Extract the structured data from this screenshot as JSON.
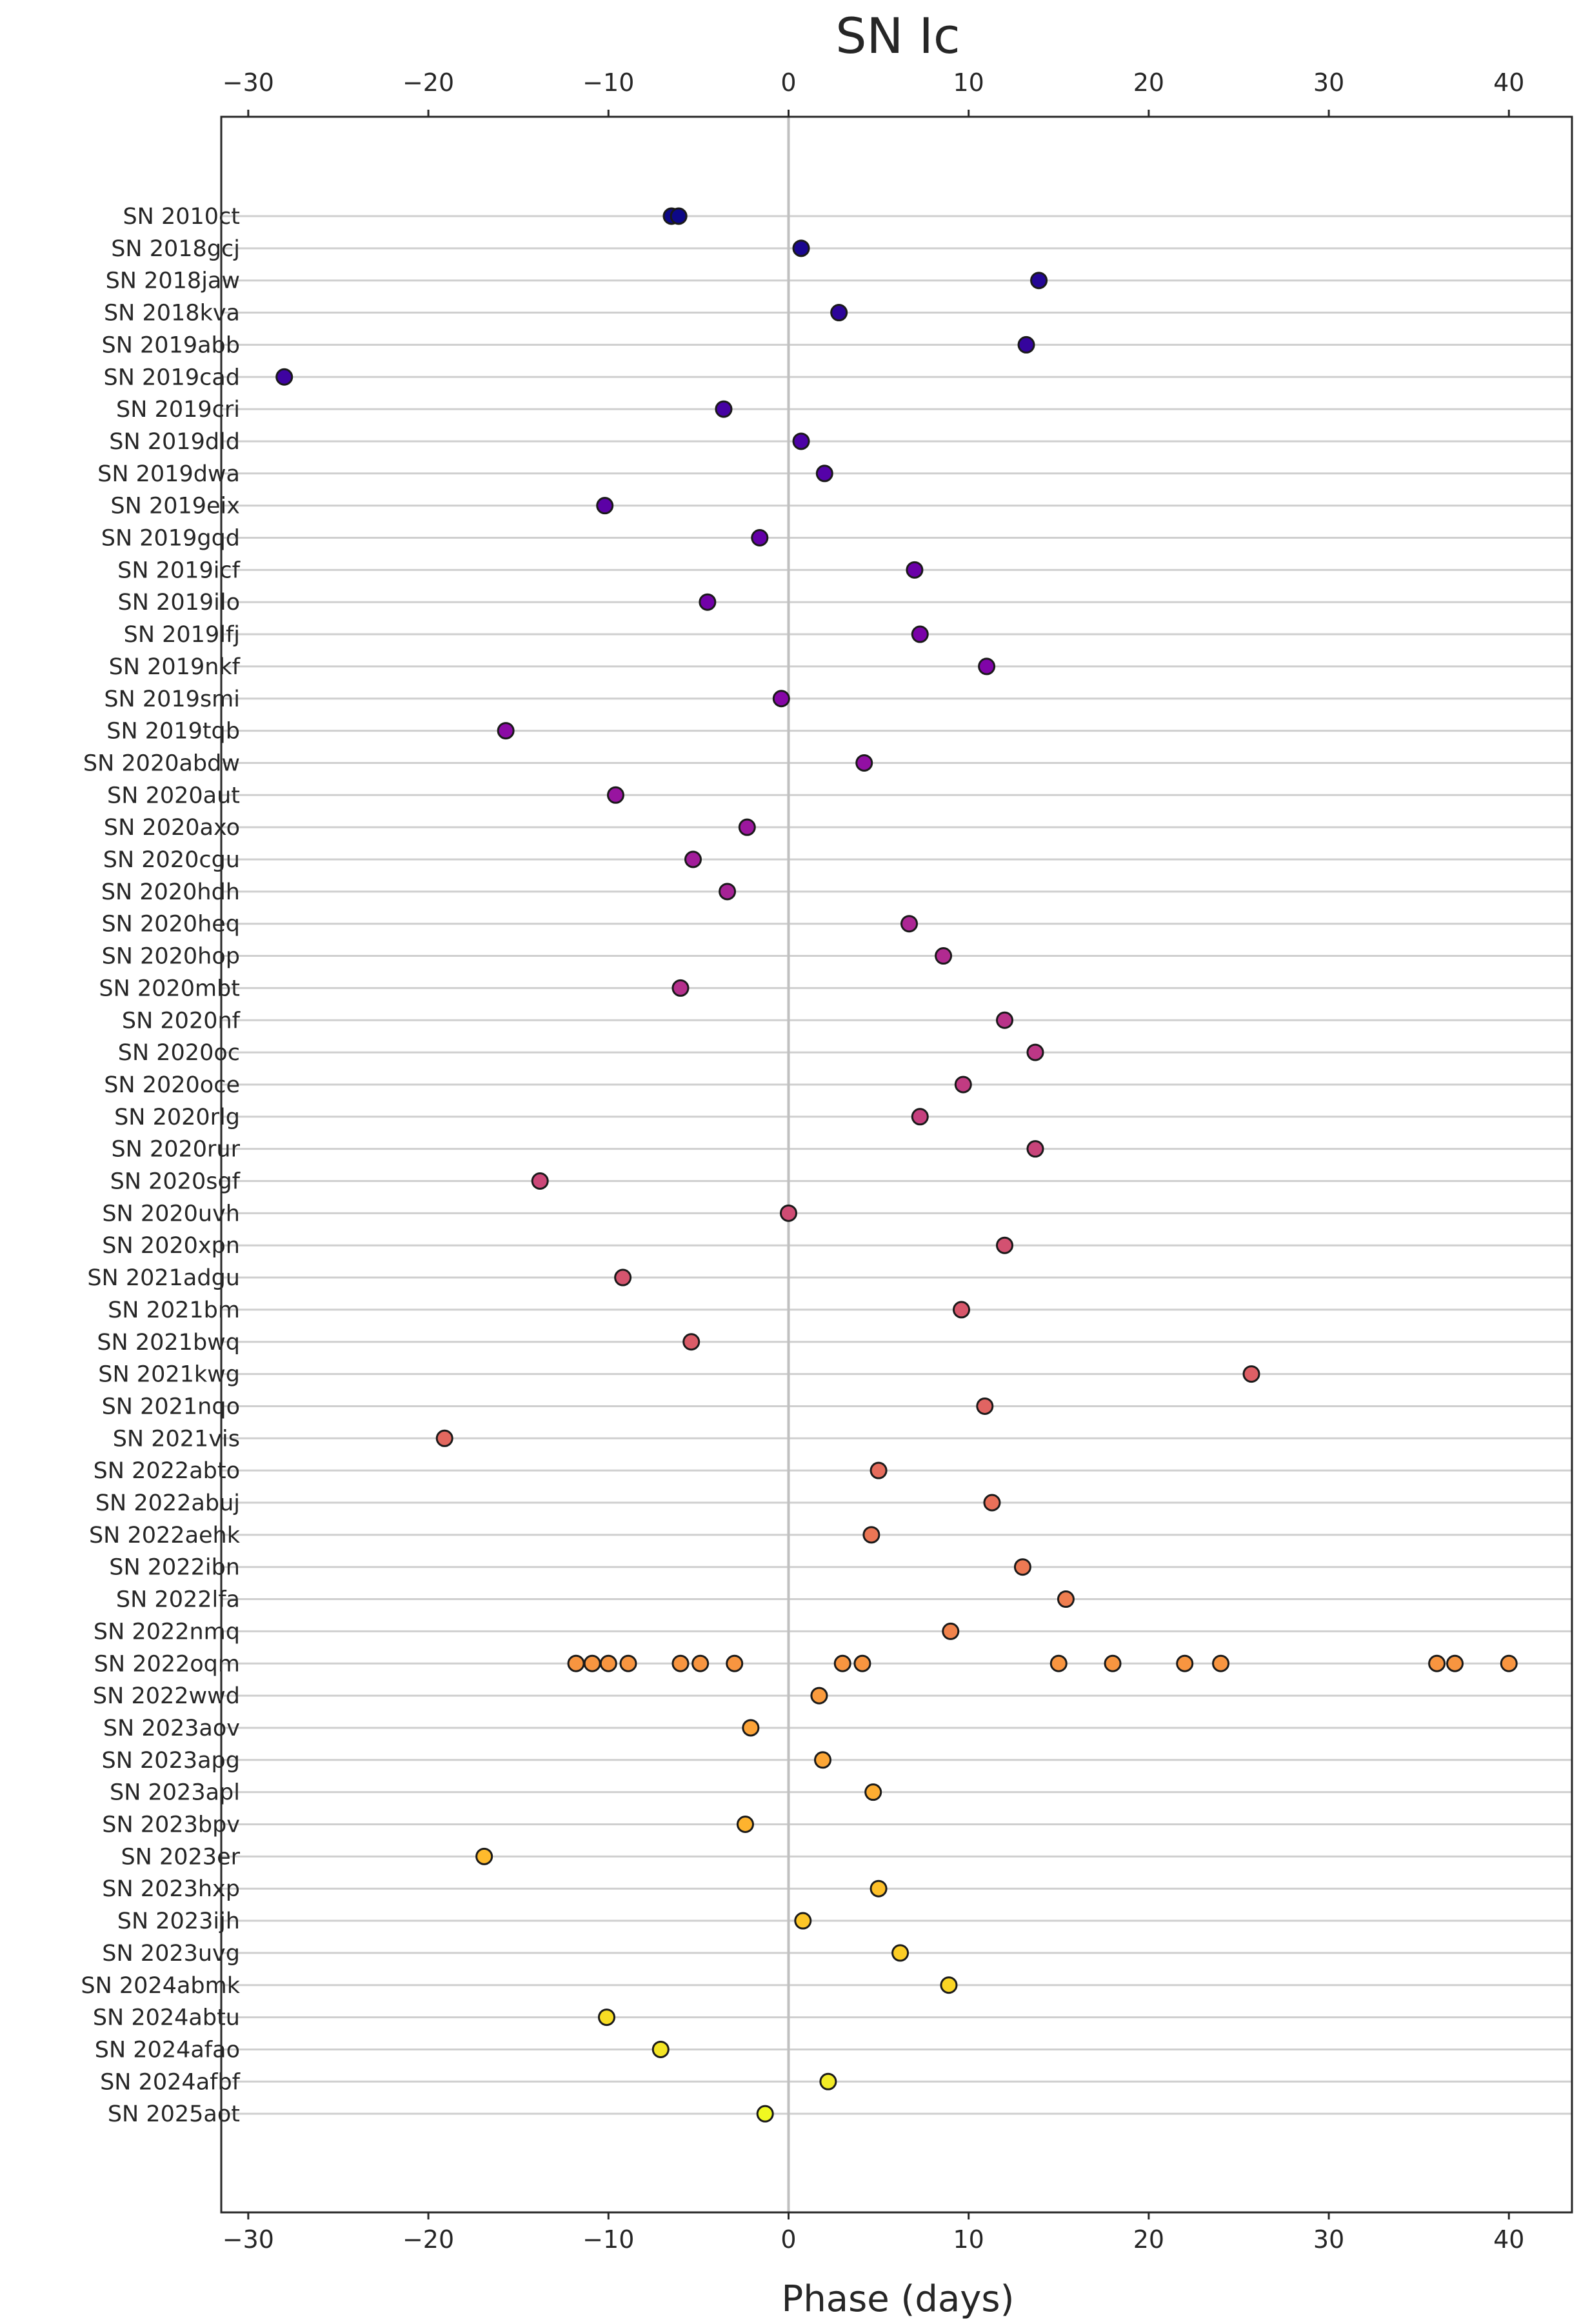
{
  "chart_data": {
    "type": "scatter",
    "title": "SN Ic",
    "xlabel": "Phase (days)",
    "ylabel": "",
    "xlim": [
      -31.5,
      43.5
    ],
    "xticks": [
      -30,
      -20,
      -10,
      0,
      10,
      20,
      30,
      40
    ],
    "xtick_labels": [
      "−30",
      "−20",
      "−10",
      "0",
      "10",
      "20",
      "30",
      "40"
    ],
    "grid": "horizontal",
    "reference_line_x": 0,
    "colormap": "plasma",
    "series": [
      {
        "name": "SN 2010ct",
        "phases": [
          -6.5,
          -6.1
        ],
        "color": "#0d0887"
      },
      {
        "name": "SN 2018gcj",
        "phases": [
          0.7
        ],
        "color": "#1a068f"
      },
      {
        "name": "SN 2018jaw",
        "phases": [
          13.9
        ],
        "color": "#240695"
      },
      {
        "name": "SN 2018kva",
        "phases": [
          2.8
        ],
        "color": "#2d0499"
      },
      {
        "name": "SN 2019abb",
        "phases": [
          13.2
        ],
        "color": "#35049d"
      },
      {
        "name": "SN 2019cad",
        "phases": [
          -28.0
        ],
        "color": "#3e03a1"
      },
      {
        "name": "SN 2019cri",
        "phases": [
          -3.6
        ],
        "color": "#4602a3"
      },
      {
        "name": "SN 2019dld",
        "phases": [
          0.7
        ],
        "color": "#4d02a6"
      },
      {
        "name": "SN 2019dwa",
        "phases": [
          2.0
        ],
        "color": "#5502a8"
      },
      {
        "name": "SN 2019eix",
        "phases": [
          -10.2
        ],
        "color": "#5c01a6"
      },
      {
        "name": "SN 2019gqd",
        "phases": [
          -1.6
        ],
        "color": "#6400a7"
      },
      {
        "name": "SN 2019icf",
        "phases": [
          7.0
        ],
        "color": "#6a00a8"
      },
      {
        "name": "SN 2019ilo",
        "phases": [
          -4.5
        ],
        "color": "#7201a8"
      },
      {
        "name": "SN 2019lfj",
        "phases": [
          7.3
        ],
        "color": "#7a02a8"
      },
      {
        "name": "SN 2019nkf",
        "phases": [
          11.0
        ],
        "color": "#8004a8"
      },
      {
        "name": "SN 2019smi",
        "phases": [
          -0.4
        ],
        "color": "#8606a6"
      },
      {
        "name": "SN 2019tqb",
        "phases": [
          -15.7
        ],
        "color": "#8b0aa5"
      },
      {
        "name": "SN 2020abdw",
        "phases": [
          4.2
        ],
        "color": "#920fa3"
      },
      {
        "name": "SN 2020aut",
        "phases": [
          -9.6
        ],
        "color": "#9814a0"
      },
      {
        "name": "SN 2020axo",
        "phases": [
          -2.3
        ],
        "color": "#9c179e"
      },
      {
        "name": "SN 2020cgu",
        "phases": [
          -5.3
        ],
        "color": "#a21d9a"
      },
      {
        "name": "SN 2020hdh",
        "phases": [
          -3.4
        ],
        "color": "#a62396"
      },
      {
        "name": "SN 2020heq",
        "phases": [
          6.7
        ],
        "color": "#ac2694"
      },
      {
        "name": "SN 2020hop",
        "phases": [
          8.6
        ],
        "color": "#b12a90"
      },
      {
        "name": "SN 2020mbt",
        "phases": [
          -6.0
        ],
        "color": "#b5308c"
      },
      {
        "name": "SN 2020nf",
        "phases": [
          12.0
        ],
        "color": "#b93289"
      },
      {
        "name": "SN 2020oc",
        "phases": [
          13.7
        ],
        "color": "#bd3786"
      },
      {
        "name": "SN 2020oce",
        "phases": [
          9.7
        ],
        "color": "#c13b82"
      },
      {
        "name": "SN 2020rlg",
        "phases": [
          7.3
        ],
        "color": "#c5407e"
      },
      {
        "name": "SN 2020rur",
        "phases": [
          13.7
        ],
        "color": "#c8447a"
      },
      {
        "name": "SN 2020sgf",
        "phases": [
          -13.8
        ],
        "color": "#cc4778"
      },
      {
        "name": "SN 2020uvh",
        "phases": [
          0.0
        ],
        "color": "#cf4c74"
      },
      {
        "name": "SN 2020xpn",
        "phases": [
          12.0
        ],
        "color": "#d35171"
      },
      {
        "name": "SN 2021adgu",
        "phases": [
          -9.2
        ],
        "color": "#d5546e"
      },
      {
        "name": "SN 2021bm",
        "phases": [
          9.6
        ],
        "color": "#d8576b"
      },
      {
        "name": "SN 2021bwq",
        "phases": [
          -5.4
        ],
        "color": "#db5c68"
      },
      {
        "name": "SN 2021kwg",
        "phases": [
          25.7
        ],
        "color": "#de5f65"
      },
      {
        "name": "SN 2021nqo",
        "phases": [
          10.9
        ],
        "color": "#e16462"
      },
      {
        "name": "SN 2021vis",
        "phases": [
          -19.1
        ],
        "color": "#e3685f"
      },
      {
        "name": "SN 2022abto",
        "phases": [
          5.0
        ],
        "color": "#e66c5c"
      },
      {
        "name": "SN 2022abuj",
        "phases": [
          11.3
        ],
        "color": "#e87059"
      },
      {
        "name": "SN 2022aehk",
        "phases": [
          4.6
        ],
        "color": "#eb7655"
      },
      {
        "name": "SN 2022ibn",
        "phases": [
          13.0
        ],
        "color": "#ed7953"
      },
      {
        "name": "SN 2022lfa",
        "phases": [
          15.4
        ],
        "color": "#ef7e50"
      },
      {
        "name": "SN 2022nmq",
        "phases": [
          9.0
        ],
        "color": "#f1834c"
      },
      {
        "name": "SN 2022oqm",
        "phases": [
          -11.8,
          -10.9,
          -10.0,
          -8.9,
          -6.0,
          -4.9,
          -3.0,
          3.0,
          4.1,
          15.0,
          18.0,
          22.0,
          24.0,
          36.0,
          37.0,
          40.0
        ],
        "color": "#f89540"
      },
      {
        "name": "SN 2022wwd",
        "phases": [
          1.7
        ],
        "color": "#fa9b3d"
      },
      {
        "name": "SN 2023aov",
        "phases": [
          -2.1
        ],
        "color": "#fca338"
      },
      {
        "name": "SN 2023apg",
        "phases": [
          1.9
        ],
        "color": "#fca636"
      },
      {
        "name": "SN 2023apl",
        "phases": [
          4.7
        ],
        "color": "#fdad32"
      },
      {
        "name": "SN 2023bpv",
        "phases": [
          -2.4
        ],
        "color": "#feb32e"
      },
      {
        "name": "SN 2023er",
        "phases": [
          -16.9
        ],
        "color": "#feba2c"
      },
      {
        "name": "SN 2023hxp",
        "phases": [
          5.0
        ],
        "color": "#fec029"
      },
      {
        "name": "SN 2023ijh",
        "phases": [
          0.8
        ],
        "color": "#fdc627"
      },
      {
        "name": "SN 2023uvg",
        "phases": [
          6.2
        ],
        "color": "#fccd25"
      },
      {
        "name": "SN 2024abmk",
        "phases": [
          8.9
        ],
        "color": "#fad524"
      },
      {
        "name": "SN 2024abtu",
        "phases": [
          -10.1
        ],
        "color": "#f7dd24"
      },
      {
        "name": "SN 2024afao",
        "phases": [
          -7.1
        ],
        "color": "#f4e525"
      },
      {
        "name": "SN 2024afbf",
        "phases": [
          2.2
        ],
        "color": "#f2eb27"
      },
      {
        "name": "SN 2025aot",
        "phases": [
          -1.3
        ],
        "color": "#f0f921"
      }
    ]
  }
}
